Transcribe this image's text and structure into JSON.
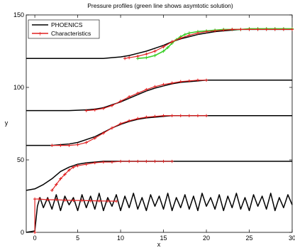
{
  "chart_data": {
    "type": "line",
    "title": "Pressure profiles (green line shows asymtotic solution)",
    "xlabel": "x",
    "ylabel": "y",
    "xlim": [
      -1,
      30
    ],
    "ylim": [
      0,
      150
    ],
    "xticks": [
      0,
      5,
      10,
      15,
      20,
      25,
      30
    ],
    "yticks": [
      0,
      50,
      100,
      150
    ],
    "grid": false,
    "legend_position": "top-left",
    "legend": [
      "PHOENICS",
      "Characteristics"
    ],
    "colors": {
      "phoenics": "#000000",
      "characteristics": "#e02020",
      "asymptotic": "#3ccf2a"
    },
    "series": [
      {
        "name": "PHOENICS",
        "profiles": [
          {
            "x": [
              -1,
              0,
              0.3,
              0.6,
              1,
              1.5,
              2,
              2.5,
              3,
              3.5,
              4,
              4.5,
              5,
              5.5,
              6,
              6.5,
              7,
              7.5,
              8,
              8.5,
              9,
              9.5,
              10,
              10.5,
              11,
              11.5,
              12,
              12.5,
              13,
              13.5,
              14,
              14.5,
              15,
              15.5,
              16,
              16.5,
              17,
              17.5,
              18,
              18.5,
              19,
              19.5,
              20,
              20.5,
              21,
              21.5,
              22,
              22.5,
              23,
              23.5,
              24,
              24.5,
              25,
              25.5,
              26,
              26.5,
              27,
              27.5,
              28,
              28.5,
              29,
              29.5,
              30
            ],
            "y": [
              0,
              1,
              18,
              24,
              17,
              24,
              16,
              26,
              15,
              25,
              19,
              24,
              15,
              26,
              17,
              25,
              16,
              27,
              15,
              24,
              18,
              26,
              15,
              25,
              17,
              27,
              16,
              24,
              15,
              26,
              18,
              25,
              16,
              27,
              15,
              24,
              17,
              26,
              16,
              25,
              15,
              27,
              18,
              24,
              16,
              26,
              15,
              25,
              17,
              27,
              16,
              24,
              15,
              26,
              18,
              25,
              16,
              27,
              15,
              24,
              17,
              26,
              19
            ]
          },
          {
            "x": [
              -1,
              0,
              1,
              2,
              3,
              4,
              5,
              6,
              7,
              8,
              9,
              10,
              12,
              14,
              16,
              20,
              25,
              30
            ],
            "y": [
              29,
              30,
              33,
              37,
              42,
              45,
              47,
              48,
              48.5,
              49,
              49,
              49,
              49,
              49,
              49,
              49,
              49,
              49
            ]
          },
          {
            "x": [
              -1,
              0,
              2,
              4,
              5,
              6,
              7,
              8,
              9,
              10,
              11,
              12,
              13,
              14,
              15,
              16,
              18,
              20,
              25,
              30
            ],
            "y": [
              60,
              60,
              60,
              61,
              62,
              64,
              66,
              69,
              72,
              74.5,
              76.5,
              78,
              79,
              79.5,
              80,
              80.5,
              80.5,
              80.5,
              80.5,
              80.5
            ]
          },
          {
            "x": [
              -1,
              0,
              4,
              6,
              7,
              8,
              9,
              10,
              11,
              12,
              13,
              14,
              15,
              16,
              17,
              18,
              19,
              20,
              22,
              25,
              30
            ],
            "y": [
              84,
              84,
              84,
              84.5,
              85,
              86,
              88,
              90,
              92.5,
              95,
              97.5,
              99.5,
              101,
              102.5,
              103.5,
              104,
              104.5,
              105,
              105,
              105,
              105
            ]
          },
          {
            "x": [
              -1,
              0,
              5,
              8,
              9,
              10,
              11,
              12,
              13,
              14,
              15,
              16,
              17,
              18,
              19,
              20,
              21,
              22,
              23,
              24,
              25,
              26,
              27,
              28,
              30
            ],
            "y": [
              120,
              120,
              120,
              120,
              120.5,
              121,
              122,
              123.5,
              125,
              127,
              129,
              131.5,
              133.5,
              135,
              136.5,
              137.5,
              138.5,
              139,
              139.5,
              140,
              140,
              140,
              140,
              140,
              140
            ]
          }
        ]
      },
      {
        "name": "Characteristics",
        "profiles": [
          {
            "x": [
              0,
              0,
              0.5,
              1.5,
              2.5,
              3.5,
              4.5,
              5.5,
              6.5,
              7.5,
              8.5,
              9.5
            ],
            "y": [
              0,
              23,
              23,
              22.5,
              22.5,
              22.2,
              22,
              22,
              21.8,
              21.7,
              21.6,
              21.5
            ]
          },
          {
            "x": [
              2,
              2.5,
              3,
              3.5,
              4,
              4.5,
              5,
              6,
              7,
              8,
              9,
              10,
              11,
              12,
              13,
              14,
              15,
              16
            ],
            "y": [
              29,
              33,
              37,
              40,
              43,
              45,
              46,
              47,
              48,
              48.5,
              48.5,
              49,
              49,
              49,
              49,
              49,
              49,
              49
            ]
          },
          {
            "x": [
              2,
              3,
              4,
              5,
              6,
              7,
              8,
              9,
              10,
              11,
              12,
              13,
              14,
              15,
              16,
              17,
              18,
              19,
              20
            ],
            "y": [
              60,
              60,
              60,
              60.5,
              62,
              65,
              68.5,
              72,
              75,
              77,
              78.5,
              79.5,
              80,
              80.5,
              80.5,
              80.5,
              80.5,
              80.5,
              80.5
            ]
          },
          {
            "x": [
              6,
              7,
              8,
              9,
              10,
              11,
              12,
              13,
              14,
              15,
              16,
              17,
              18,
              19,
              20
            ],
            "y": [
              84,
              84.5,
              85.5,
              87.5,
              90.5,
              93.5,
              96,
              98.5,
              100.5,
              102,
              103,
              104,
              104.5,
              105,
              105
            ]
          },
          {
            "x": [
              10.5,
              11,
              12,
              13,
              14,
              15,
              16,
              17,
              18,
              19,
              20,
              21,
              22,
              23,
              24,
              25,
              26,
              27,
              28,
              29,
              30
            ],
            "y": [
              120,
              120.5,
              121.5,
              123,
              125,
              128,
              131.5,
              134,
              136,
              137.5,
              138.5,
              139,
              139.5,
              140,
              140,
              140,
              140,
              140,
              140,
              140,
              140
            ]
          }
        ]
      },
      {
        "name": "",
        "profiles": [
          {
            "x": [
              12,
              13,
              14,
              15,
              15.5,
              16,
              16.5,
              17,
              17.5,
              18,
              19,
              20,
              21,
              22,
              23,
              24,
              25,
              26,
              27,
              28,
              29,
              30
            ],
            "y": [
              120,
              120.5,
              122,
              125,
              127.5,
              130.5,
              133,
              135,
              136.5,
              137.5,
              138.5,
              139,
              139.5,
              140,
              140,
              140,
              140.5,
              140.5,
              140.5,
              140.5,
              140.5,
              140.5
            ]
          }
        ]
      }
    ]
  }
}
